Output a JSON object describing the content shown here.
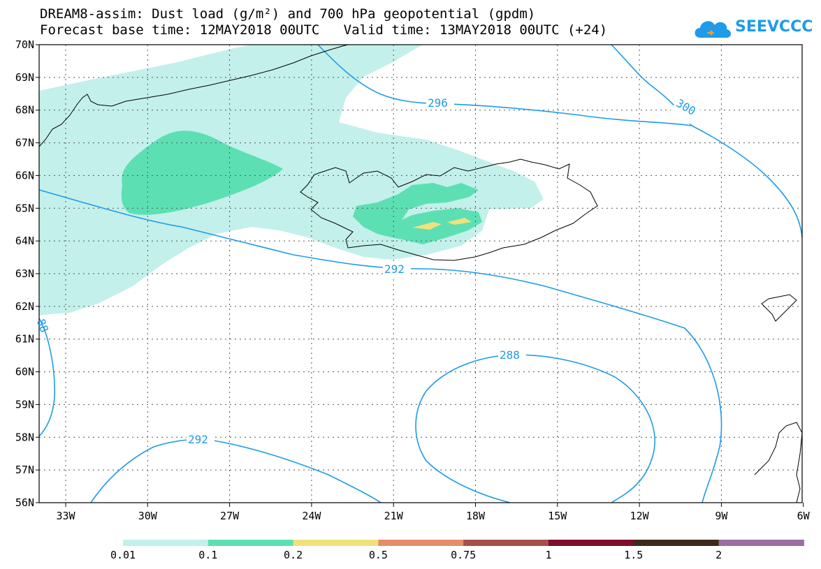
{
  "title": {
    "line1": "DREAM8-assim: Dust load (g/m²) and 700 hPa geopotential (gpdm)",
    "line2": "Forecast base time: 12MAY2018 00UTC   Valid time: 13MAY2018 00UTC (+24)"
  },
  "logo": {
    "text": "SEEVCCC",
    "icon": "cloud-icon"
  },
  "map": {
    "lat_labels": [
      "70N",
      "69N",
      "68N",
      "67N",
      "66N",
      "65N",
      "64N",
      "63N",
      "62N",
      "61N",
      "60N",
      "59N",
      "58N",
      "57N",
      "56N"
    ],
    "lon_labels": [
      "33W",
      "30W",
      "27W",
      "24W",
      "21W",
      "18W",
      "15W",
      "12W",
      "9W",
      "6W"
    ],
    "contour_labels": {
      "c296": "296",
      "c300": "300",
      "c292a": "292",
      "c292b": "292",
      "c288": "288",
      "c88": "88"
    }
  },
  "colorbar": {
    "colors": [
      "#c3f0ea",
      "#5ddfb4",
      "#f0e27a",
      "#e58d6a",
      "#a94e4c",
      "#7d0d2a",
      "#3e2a1b",
      "#9a6ea2"
    ],
    "labels": [
      "0.01",
      "0.1",
      "0.2",
      "0.5",
      "0.75",
      "1",
      "1.5",
      "2"
    ]
  },
  "colors": {
    "contour": "#1e9be9",
    "dust_low": "#c3f0ea",
    "dust_mid": "#5ddfb4",
    "dust_high": "#f0e27a"
  }
}
